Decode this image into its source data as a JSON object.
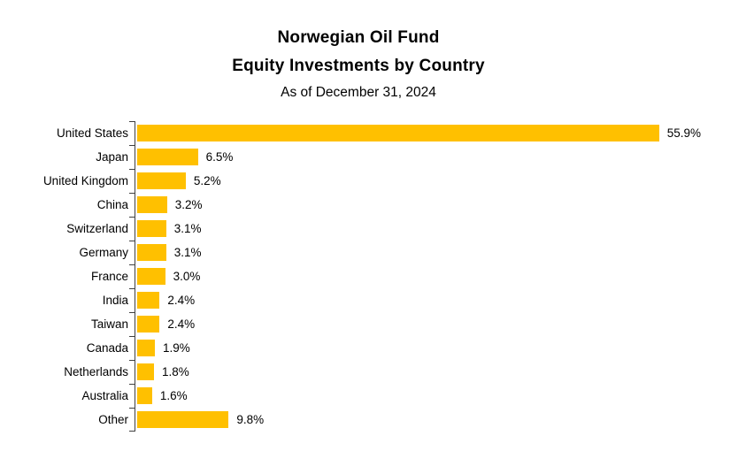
{
  "header": {
    "title_line1": "Norwegian Oil Fund",
    "title_line2": "Equity Investments by Country",
    "subtitle": "As of December 31, 2024"
  },
  "chart_data": {
    "type": "bar",
    "orientation": "horizontal",
    "title": "Norwegian Oil Fund Equity Investments by Country",
    "subtitle": "As of December 31, 2024",
    "xlabel": "",
    "ylabel": "",
    "categories": [
      "United States",
      "Japan",
      "United Kingdom",
      "China",
      "Switzerland",
      "Germany",
      "France",
      "India",
      "Taiwan",
      "Canada",
      "Netherlands",
      "Australia",
      "Other"
    ],
    "values": [
      55.9,
      6.5,
      5.2,
      3.2,
      3.1,
      3.1,
      3.0,
      2.4,
      2.4,
      1.9,
      1.8,
      1.6,
      9.8
    ],
    "value_labels": [
      "55.9%",
      "6.5%",
      "5.2%",
      "3.2%",
      "3.1%",
      "3.1%",
      "3.0%",
      "2.4%",
      "2.4%",
      "1.9%",
      "1.8%",
      "1.6%",
      "9.8%"
    ],
    "xlim": [
      0,
      60
    ],
    "grid": false,
    "legend": false,
    "data_labels": "outside-end",
    "bar_color": "#FFC000",
    "axis_color": "#404040",
    "text_color": "#000000",
    "background_color": "#FFFFFF"
  }
}
